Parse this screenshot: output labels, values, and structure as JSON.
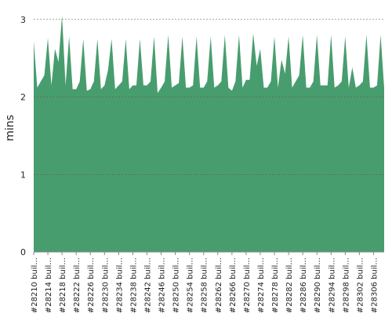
{
  "chart_data": {
    "type": "area",
    "y_label": "mins",
    "color": "#489d6e",
    "grid": true,
    "ylim": [
      0,
      3.2
    ],
    "yticks": [
      0,
      1,
      2,
      3
    ],
    "categories": [
      "#28210 buil...",
      null,
      null,
      null,
      "#28214 buil...",
      null,
      null,
      null,
      "#28218 buil...",
      null,
      null,
      null,
      "#28222 buil...",
      null,
      null,
      null,
      "#28226 buil...",
      null,
      null,
      null,
      "#28230 buil...",
      null,
      null,
      null,
      "#28234 buil...",
      null,
      null,
      null,
      "#28238 buil...",
      null,
      null,
      null,
      "#28242 buil...",
      null,
      null,
      null,
      "#28246 buil...",
      null,
      null,
      null,
      "#28250 buil...",
      null,
      null,
      null,
      "#28254 buil...",
      null,
      null,
      null,
      "#28258 buil...",
      null,
      null,
      null,
      "#28262 buil...",
      null,
      null,
      null,
      "#28266 buil...",
      null,
      null,
      null,
      "#28270 buil...",
      null,
      null,
      null,
      "#28274 buil...",
      null,
      null,
      null,
      "#28278 buil...",
      null,
      null,
      null,
      "#28282 buil...",
      null,
      null,
      null,
      "#28286 buil...",
      null,
      null,
      null,
      "#28290 buil...",
      null,
      null,
      null,
      "#28294 buil...",
      null,
      null,
      null,
      "#28298 buil...",
      null,
      null,
      null,
      "#28302 buil...",
      null,
      null,
      null,
      "#28306 buil...",
      null,
      null,
      null
    ],
    "values": [
      2.72,
      2.12,
      2.2,
      2.28,
      2.76,
      2.15,
      2.62,
      2.45,
      3.05,
      2.15,
      2.78,
      2.1,
      2.1,
      2.2,
      2.75,
      2.08,
      2.1,
      2.2,
      2.75,
      2.1,
      2.15,
      2.35,
      2.75,
      2.1,
      2.15,
      2.2,
      2.75,
      2.1,
      2.15,
      2.15,
      2.75,
      2.15,
      2.15,
      2.2,
      2.78,
      2.05,
      2.12,
      2.2,
      2.8,
      2.12,
      2.15,
      2.18,
      2.78,
      2.12,
      2.12,
      2.15,
      2.78,
      2.12,
      2.12,
      2.2,
      2.78,
      2.12,
      2.15,
      2.2,
      2.8,
      2.12,
      2.08,
      2.2,
      2.8,
      2.12,
      2.22,
      2.22,
      2.82,
      2.4,
      2.62,
      2.12,
      2.12,
      2.2,
      2.78,
      2.12,
      2.48,
      2.3,
      2.78,
      2.12,
      2.2,
      2.28,
      2.8,
      2.12,
      2.12,
      2.2,
      2.8,
      2.15,
      2.15,
      2.15,
      2.8,
      2.12,
      2.15,
      2.2,
      2.78,
      2.12,
      2.38,
      2.12,
      2.15,
      2.2,
      2.8,
      2.12,
      2.12,
      2.15,
      2.8,
      2.12
    ]
  }
}
